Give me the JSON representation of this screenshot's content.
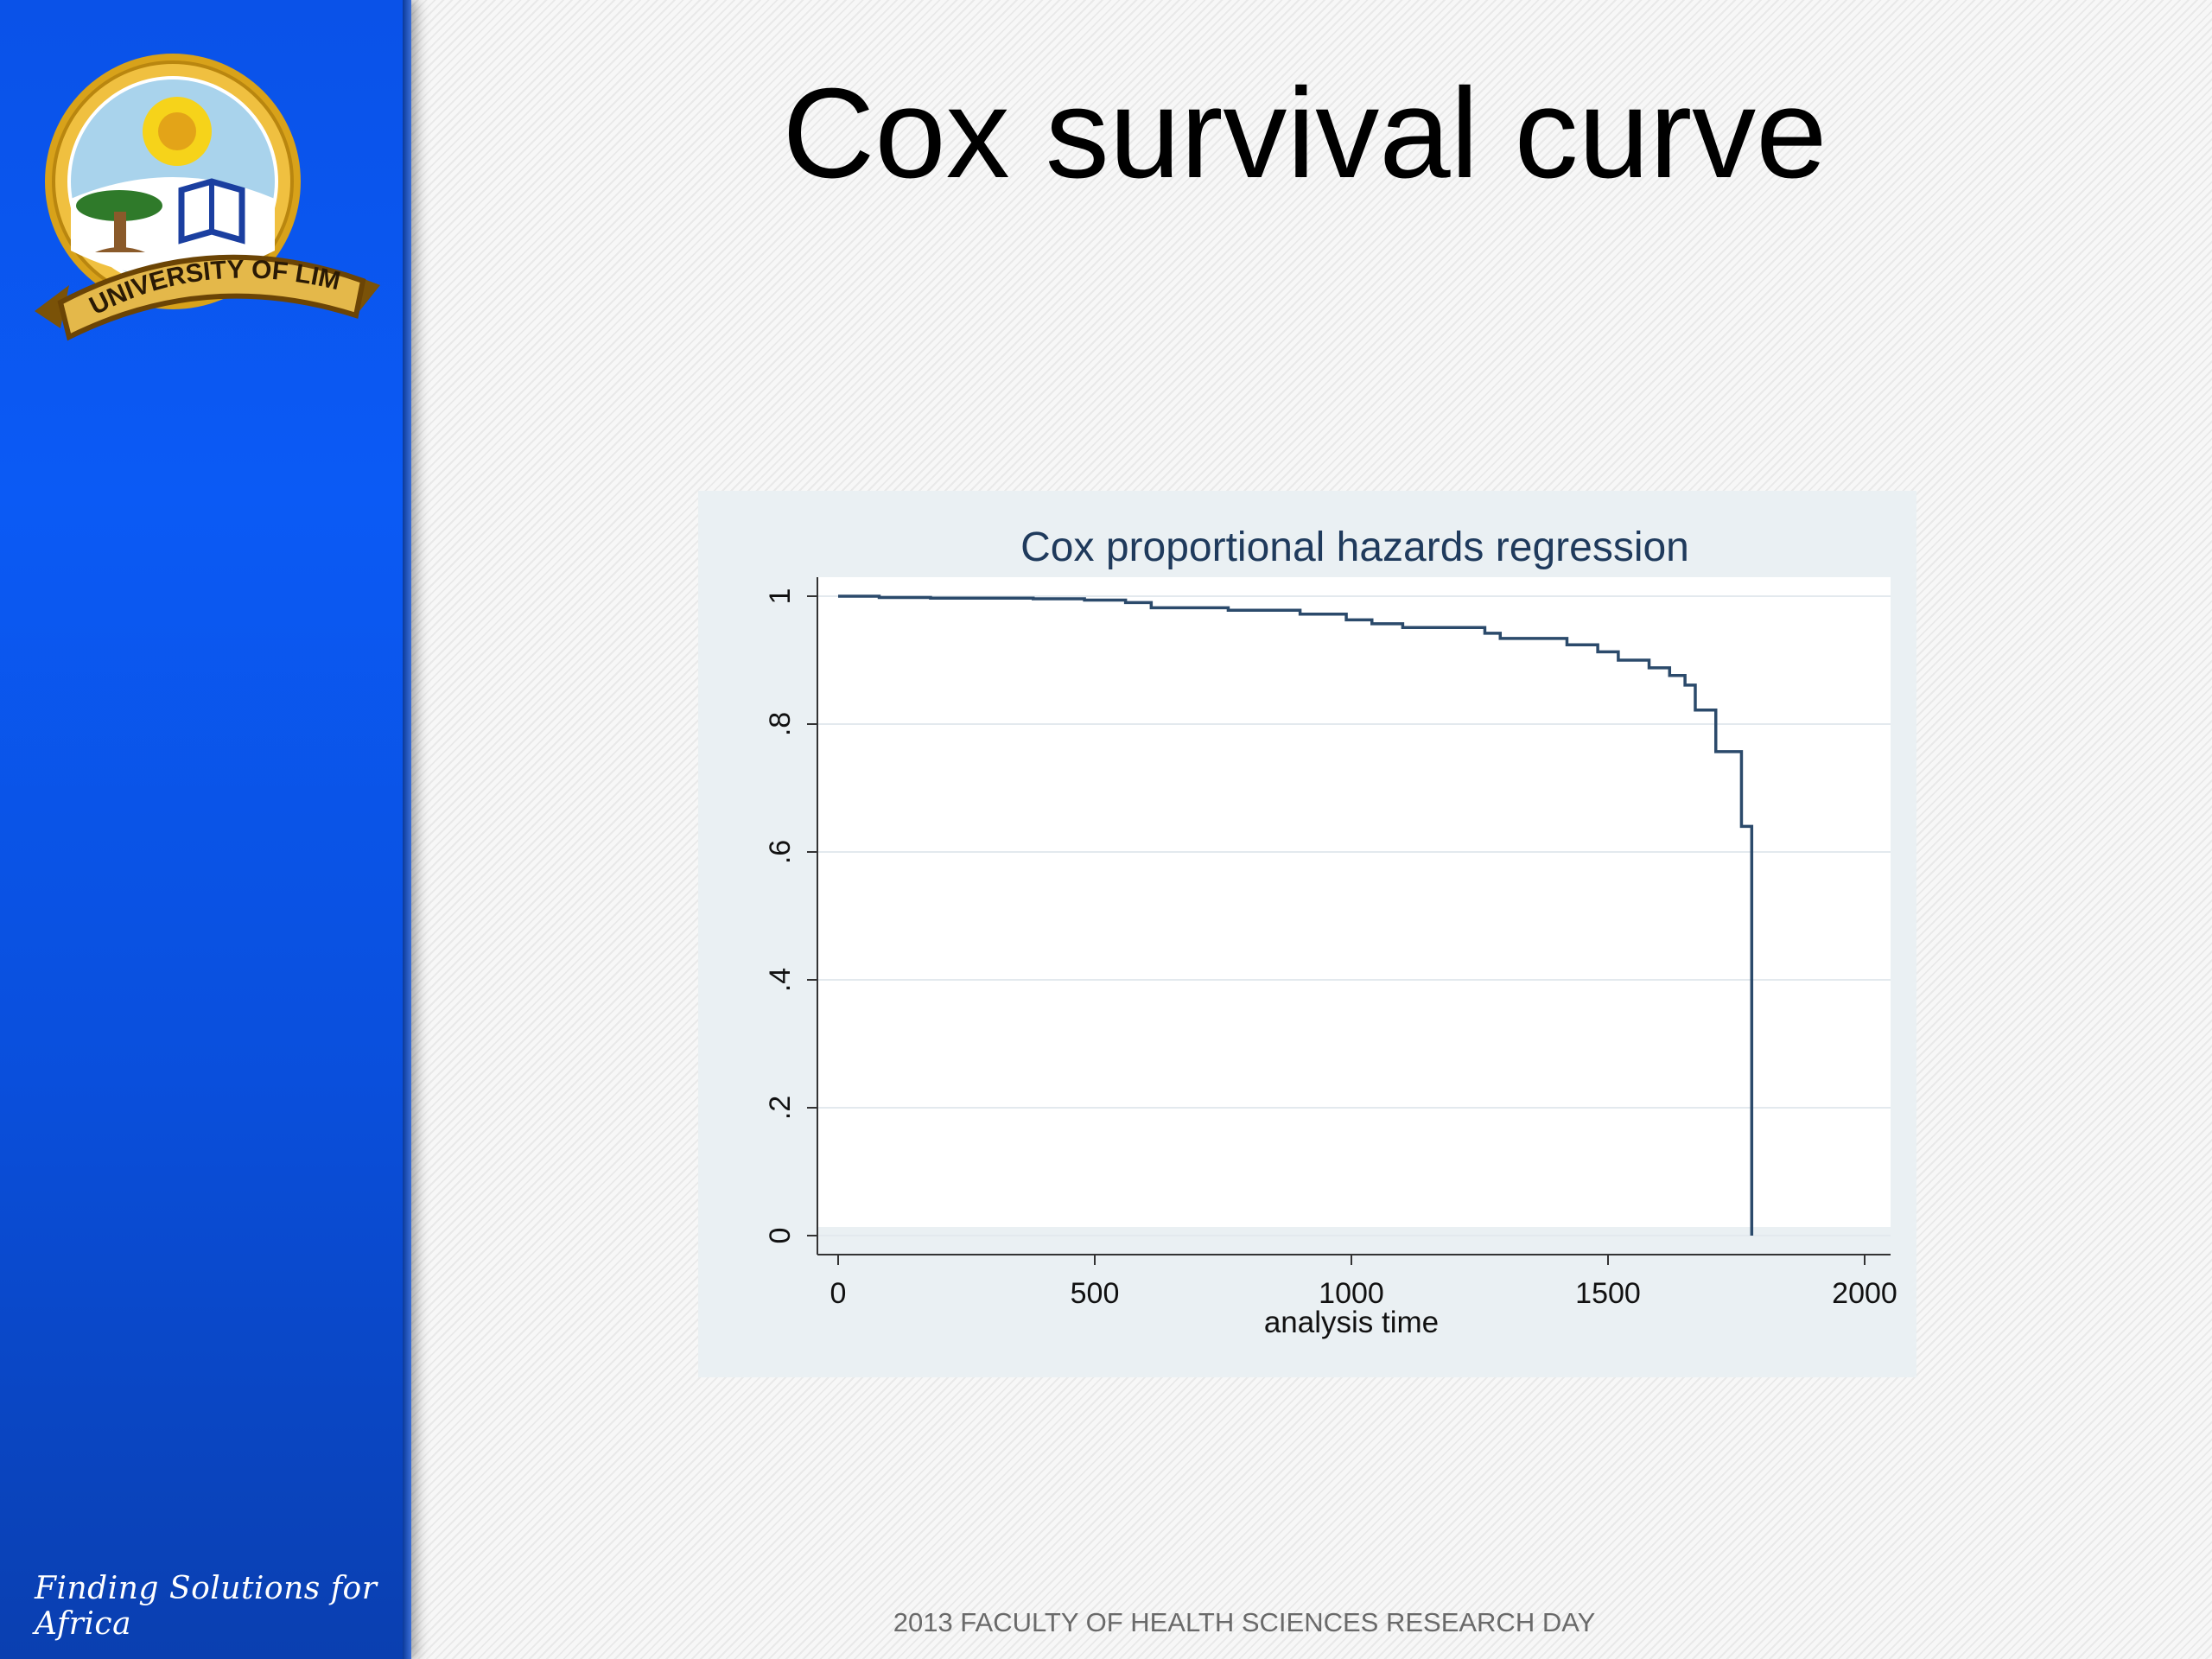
{
  "slide": {
    "title": "Cox survival curve",
    "footer": "2013 FACULTY OF HEALTH SCIENCES RESEARCH DAY"
  },
  "sidebar": {
    "logo_text": "UNIVERSITY OF LIMPOPO",
    "tagline": "Finding Solutions for Africa"
  },
  "colors": {
    "sidebar_blue": "#0b5af5",
    "curve": "#2b4a6b",
    "chart_background": "#eaf0f3"
  },
  "chart_data": {
    "type": "line",
    "title": "Cox proportional hazards regression",
    "xlabel": "analysis time",
    "ylabel": "",
    "xlim": [
      0,
      2000
    ],
    "ylim": [
      0,
      1
    ],
    "x_ticks": [
      "0",
      "500",
      "1000",
      "1500",
      "2000"
    ],
    "y_ticks": [
      "0",
      ".2",
      ".4",
      ".6",
      ".8",
      "1"
    ],
    "grid": true,
    "step": true,
    "series": [
      {
        "x": [
          0,
          80,
          180,
          380,
          480,
          560,
          610,
          760,
          900,
          990,
          1040,
          1100,
          1260,
          1290,
          1420,
          1480,
          1520,
          1580,
          1620,
          1650,
          1670,
          1710,
          1760,
          1780
        ],
        "y": [
          1.0,
          0.998,
          0.997,
          0.996,
          0.994,
          0.99,
          0.982,
          0.978,
          0.972,
          0.963,
          0.957,
          0.951,
          0.942,
          0.934,
          0.924,
          0.913,
          0.9,
          0.888,
          0.876,
          0.861,
          0.822,
          0.757,
          0.64,
          0.0
        ]
      }
    ]
  }
}
